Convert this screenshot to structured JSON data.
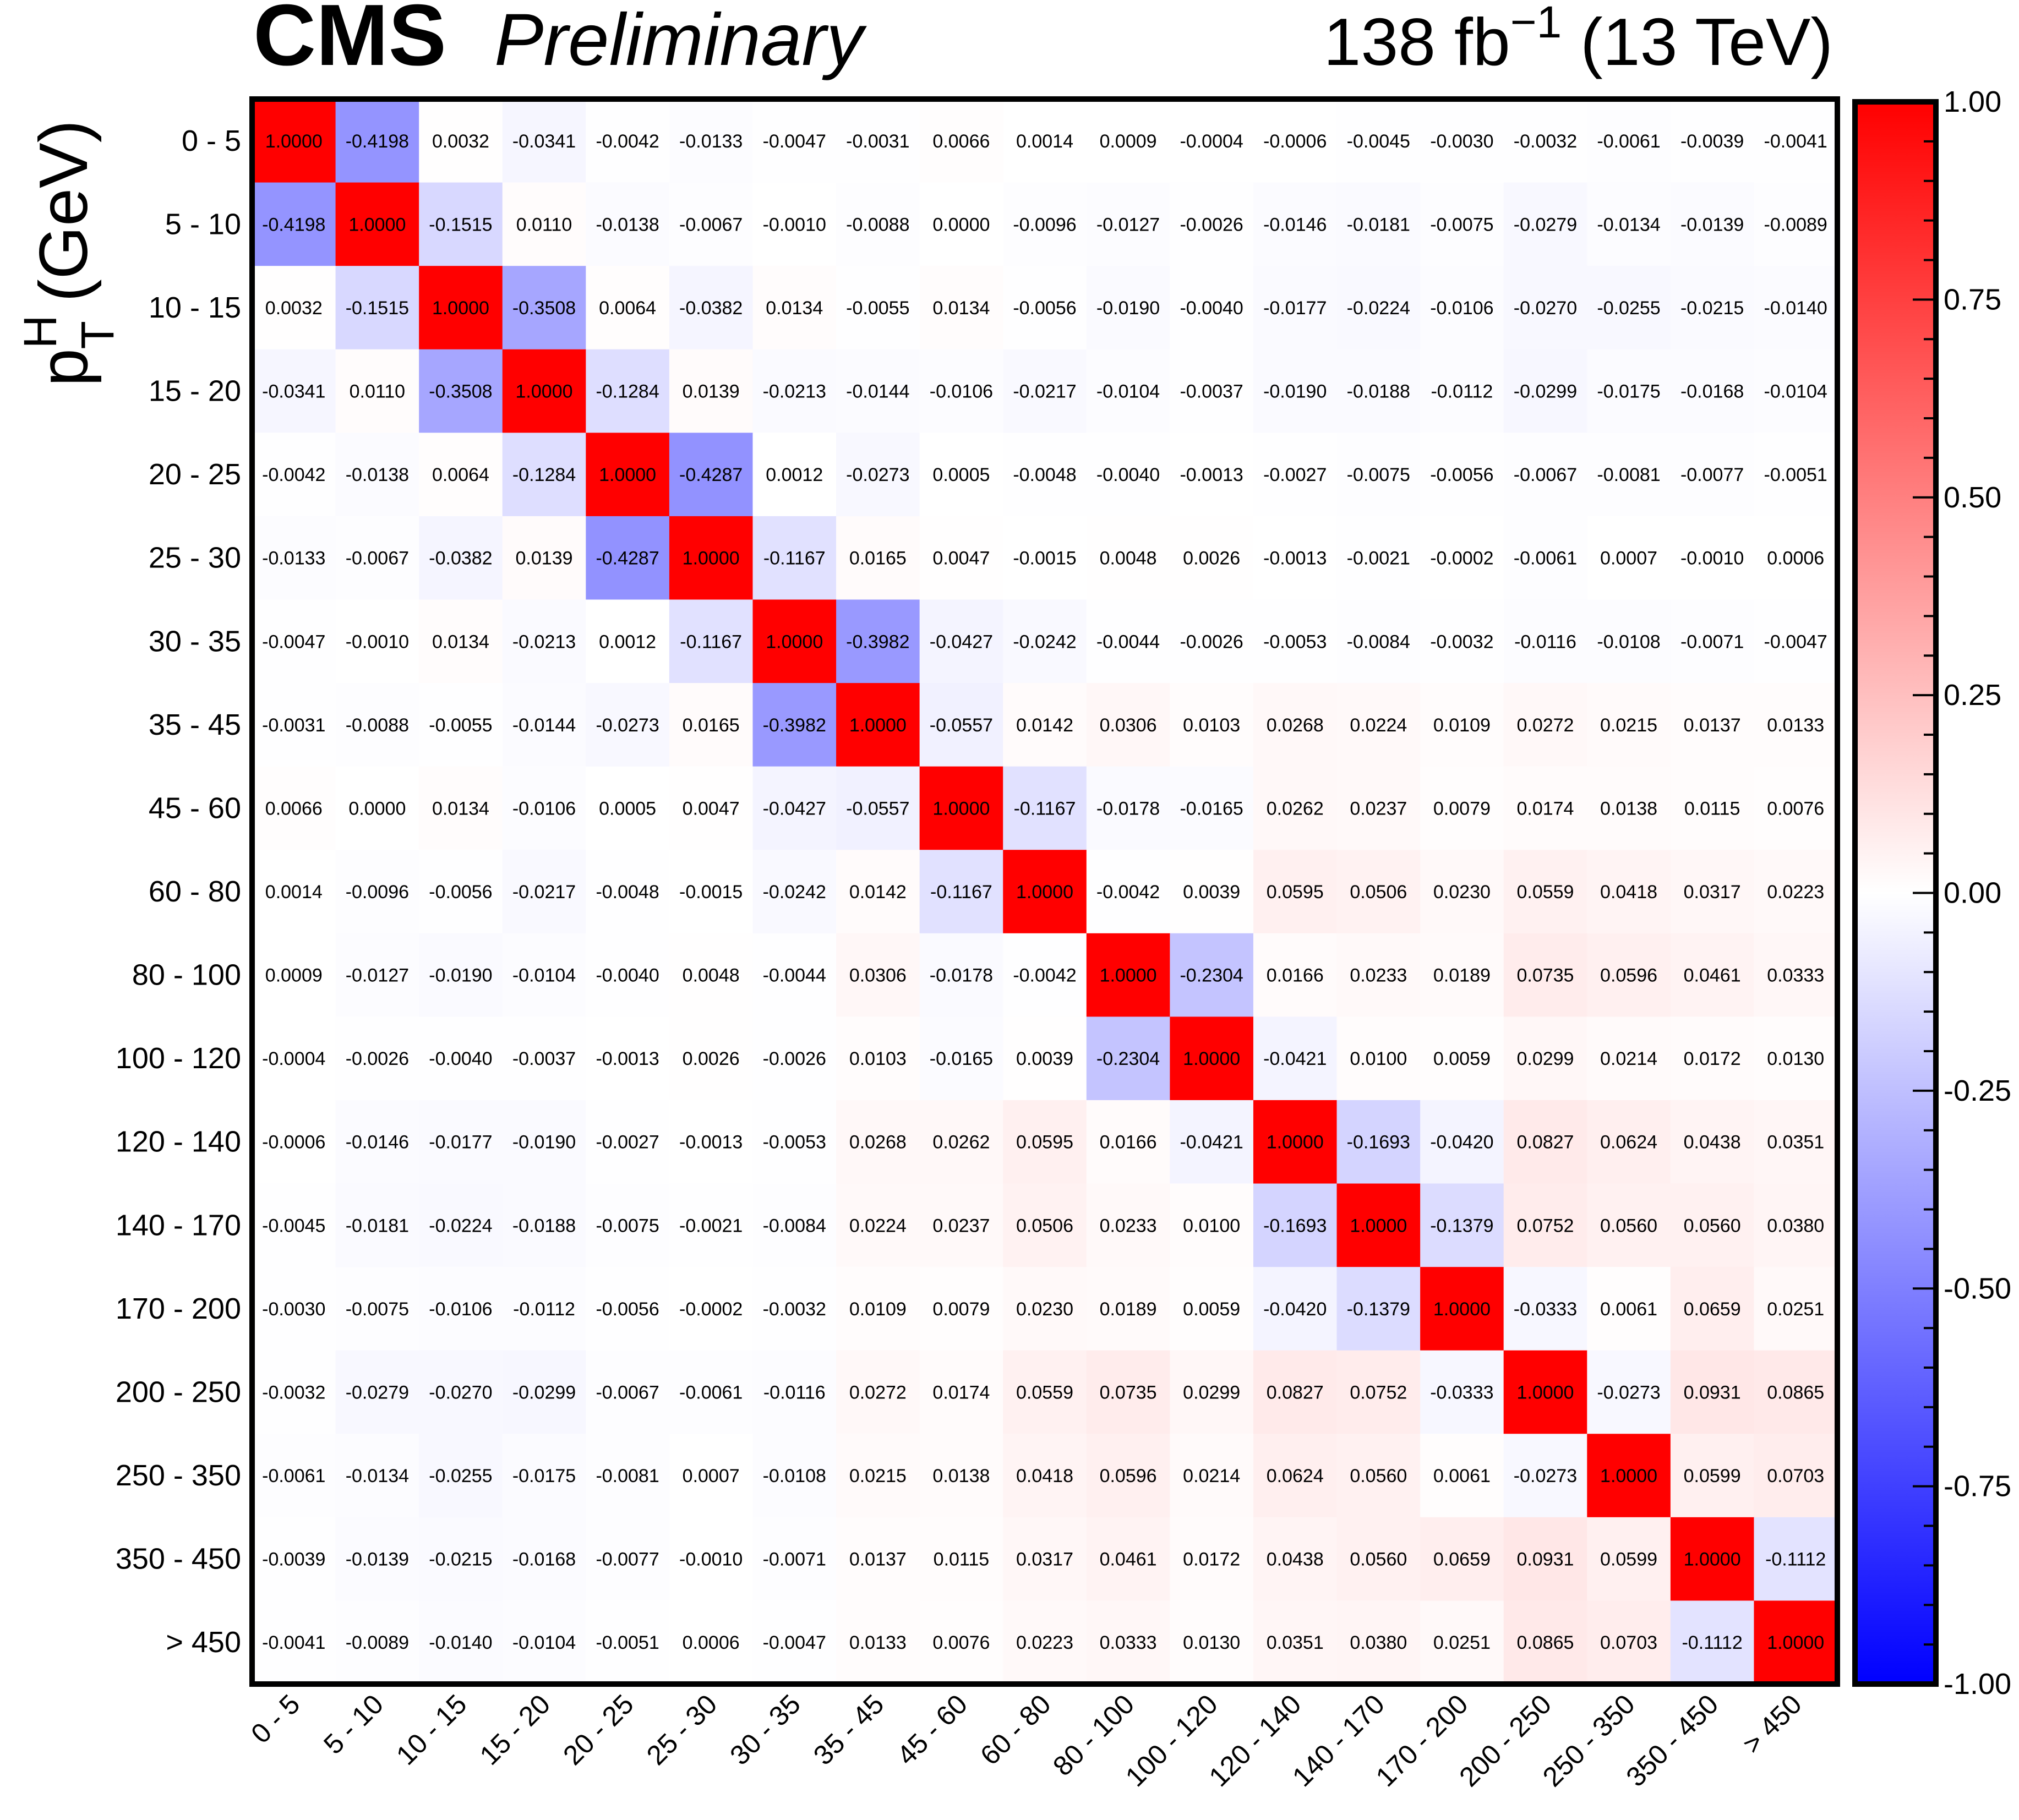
{
  "header": {
    "experiment": "CMS",
    "status": "Preliminary",
    "lumi_main": "138 fb",
    "lumi_exp": "−1",
    "lumi_energy": " (13 TeV)"
  },
  "axis": {
    "ylabel_p": "p",
    "ylabel_sup": "H",
    "ylabel_sub": "T",
    "ylabel_unit": " (GeV)"
  },
  "colorbar": {
    "min": -1.0,
    "max": 1.0,
    "labels": [
      "1.00",
      "0.75",
      "0.50",
      "0.25",
      "0.00",
      "-0.25",
      "-0.50",
      "-0.75",
      "-1.00"
    ],
    "low_color": "#0000ff",
    "mid_color": "#ffffff",
    "high_color": "#ff0000"
  },
  "chart_data": {
    "type": "heatmap",
    "title": "CMS Preliminary",
    "xlabel": "",
    "ylabel": "pT H (GeV)",
    "zlim": [
      -1,
      1
    ],
    "categories": [
      "0 - 5",
      "5 - 10",
      "10 - 15",
      "15 - 20",
      "20 - 25",
      "25 - 30",
      "30 - 35",
      "35 - 45",
      "45 - 60",
      "60 - 80",
      "80 - 100",
      "100 - 120",
      "120 - 140",
      "140 - 170",
      "170 - 200",
      "200 - 250",
      "250 - 350",
      "350 - 450",
      "> 450"
    ],
    "matrix": [
      [
        "1.0000",
        "-0.4198",
        "0.0032",
        "-0.0341",
        "-0.0042",
        "-0.0133",
        "-0.0047",
        "-0.0031",
        "0.0066",
        "0.0014",
        "0.0009",
        "-0.0004",
        "-0.0006",
        "-0.0045",
        "-0.0030",
        "-0.0032",
        "-0.0061",
        "-0.0039",
        "-0.0041"
      ],
      [
        "-0.4198",
        "1.0000",
        "-0.1515",
        "0.0110",
        "-0.0138",
        "-0.0067",
        "-0.0010",
        "-0.0088",
        "0.0000",
        "-0.0096",
        "-0.0127",
        "-0.0026",
        "-0.0146",
        "-0.0181",
        "-0.0075",
        "-0.0279",
        "-0.0134",
        "-0.0139",
        "-0.0089"
      ],
      [
        "0.0032",
        "-0.1515",
        "1.0000",
        "-0.3508",
        "0.0064",
        "-0.0382",
        "0.0134",
        "-0.0055",
        "0.0134",
        "-0.0056",
        "-0.0190",
        "-0.0040",
        "-0.0177",
        "-0.0224",
        "-0.0106",
        "-0.0270",
        "-0.0255",
        "-0.0215",
        "-0.0140"
      ],
      [
        "-0.0341",
        "0.0110",
        "-0.3508",
        "1.0000",
        "-0.1284",
        "0.0139",
        "-0.0213",
        "-0.0144",
        "-0.0106",
        "-0.0217",
        "-0.0104",
        "-0.0037",
        "-0.0190",
        "-0.0188",
        "-0.0112",
        "-0.0299",
        "-0.0175",
        "-0.0168",
        "-0.0104"
      ],
      [
        "-0.0042",
        "-0.0138",
        "0.0064",
        "-0.1284",
        "1.0000",
        "-0.4287",
        "0.0012",
        "-0.0273",
        "0.0005",
        "-0.0048",
        "-0.0040",
        "-0.0013",
        "-0.0027",
        "-0.0075",
        "-0.0056",
        "-0.0067",
        "-0.0081",
        "-0.0077",
        "-0.0051"
      ],
      [
        "-0.0133",
        "-0.0067",
        "-0.0382",
        "0.0139",
        "-0.4287",
        "1.0000",
        "-0.1167",
        "0.0165",
        "0.0047",
        "-0.0015",
        "0.0048",
        "0.0026",
        "-0.0013",
        "-0.0021",
        "-0.0002",
        "-0.0061",
        "0.0007",
        "-0.0010",
        "0.0006"
      ],
      [
        "-0.0047",
        "-0.0010",
        "0.0134",
        "-0.0213",
        "0.0012",
        "-0.1167",
        "1.0000",
        "-0.3982",
        "-0.0427",
        "-0.0242",
        "-0.0044",
        "-0.0026",
        "-0.0053",
        "-0.0084",
        "-0.0032",
        "-0.0116",
        "-0.0108",
        "-0.0071",
        "-0.0047"
      ],
      [
        "-0.0031",
        "-0.0088",
        "-0.0055",
        "-0.0144",
        "-0.0273",
        "0.0165",
        "-0.3982",
        "1.0000",
        "-0.0557",
        "0.0142",
        "0.0306",
        "0.0103",
        "0.0268",
        "0.0224",
        "0.0109",
        "0.0272",
        "0.0215",
        "0.0137",
        "0.0133"
      ],
      [
        "0.0066",
        "0.0000",
        "0.0134",
        "-0.0106",
        "0.0005",
        "0.0047",
        "-0.0427",
        "-0.0557",
        "1.0000",
        "-0.1167",
        "-0.0178",
        "-0.0165",
        "0.0262",
        "0.0237",
        "0.0079",
        "0.0174",
        "0.0138",
        "0.0115",
        "0.0076"
      ],
      [
        "0.0014",
        "-0.0096",
        "-0.0056",
        "-0.0217",
        "-0.0048",
        "-0.0015",
        "-0.0242",
        "0.0142",
        "-0.1167",
        "1.0000",
        "-0.0042",
        "0.0039",
        "0.0595",
        "0.0506",
        "0.0230",
        "0.0559",
        "0.0418",
        "0.0317",
        "0.0223"
      ],
      [
        "0.0009",
        "-0.0127",
        "-0.0190",
        "-0.0104",
        "-0.0040",
        "0.0048",
        "-0.0044",
        "0.0306",
        "-0.0178",
        "-0.0042",
        "1.0000",
        "-0.2304",
        "0.0166",
        "0.0233",
        "0.0189",
        "0.0735",
        "0.0596",
        "0.0461",
        "0.0333"
      ],
      [
        "-0.0004",
        "-0.0026",
        "-0.0040",
        "-0.0037",
        "-0.0013",
        "0.0026",
        "-0.0026",
        "0.0103",
        "-0.0165",
        "0.0039",
        "-0.2304",
        "1.0000",
        "-0.0421",
        "0.0100",
        "0.0059",
        "0.0299",
        "0.0214",
        "0.0172",
        "0.0130"
      ],
      [
        "-0.0006",
        "-0.0146",
        "-0.0177",
        "-0.0190",
        "-0.0027",
        "-0.0013",
        "-0.0053",
        "0.0268",
        "0.0262",
        "0.0595",
        "0.0166",
        "-0.0421",
        "1.0000",
        "-0.1693",
        "-0.0420",
        "0.0827",
        "0.0624",
        "0.0438",
        "0.0351"
      ],
      [
        "-0.0045",
        "-0.0181",
        "-0.0224",
        "-0.0188",
        "-0.0075",
        "-0.0021",
        "-0.0084",
        "0.0224",
        "0.0237",
        "0.0506",
        "0.0233",
        "0.0100",
        "-0.1693",
        "1.0000",
        "-0.1379",
        "0.0752",
        "0.0560",
        "0.0560",
        "0.0380"
      ],
      [
        "-0.0030",
        "-0.0075",
        "-0.0106",
        "-0.0112",
        "-0.0056",
        "-0.0002",
        "-0.0032",
        "0.0109",
        "0.0079",
        "0.0230",
        "0.0189",
        "0.0059",
        "-0.0420",
        "-0.1379",
        "1.0000",
        "-0.0333",
        "0.0061",
        "0.0659",
        "0.0251"
      ],
      [
        "-0.0032",
        "-0.0279",
        "-0.0270",
        "-0.0299",
        "-0.0067",
        "-0.0061",
        "-0.0116",
        "0.0272",
        "0.0174",
        "0.0559",
        "0.0735",
        "0.0299",
        "0.0827",
        "0.0752",
        "-0.0333",
        "1.0000",
        "-0.0273",
        "0.0931",
        "0.0865"
      ],
      [
        "-0.0061",
        "-0.0134",
        "-0.0255",
        "-0.0175",
        "-0.0081",
        "0.0007",
        "-0.0108",
        "0.0215",
        "0.0138",
        "0.0418",
        "0.0596",
        "0.0214",
        "0.0624",
        "0.0560",
        "0.0061",
        "-0.0273",
        "1.0000",
        "0.0599",
        "0.0703"
      ],
      [
        "-0.0039",
        "-0.0139",
        "-0.0215",
        "-0.0168",
        "-0.0077",
        "-0.0010",
        "-0.0071",
        "0.0137",
        "0.0115",
        "0.0317",
        "0.0461",
        "0.0172",
        "0.0438",
        "0.0560",
        "0.0659",
        "0.0931",
        "0.0599",
        "1.0000",
        "-0.1112"
      ],
      [
        "-0.0041",
        "-0.0089",
        "-0.0140",
        "-0.0104",
        "-0.0051",
        "0.0006",
        "-0.0047",
        "0.0133",
        "0.0076",
        "0.0223",
        "0.0333",
        "0.0130",
        "0.0351",
        "0.0380",
        "0.0251",
        "0.0865",
        "0.0703",
        "-0.1112",
        "1.0000"
      ]
    ]
  }
}
